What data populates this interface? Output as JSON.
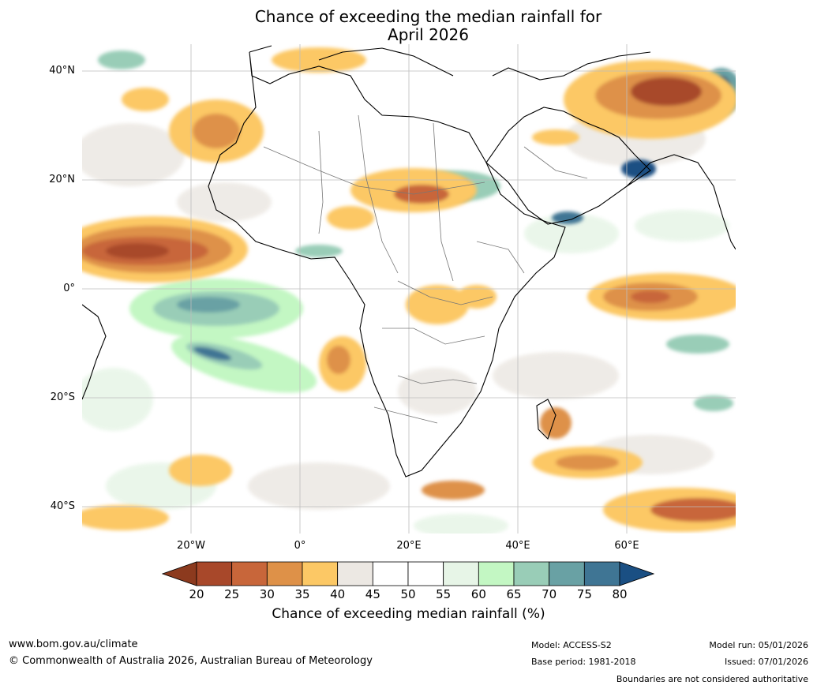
{
  "title_line1": "Chance of exceeding the median rainfall for",
  "title_line2": "April 2026",
  "lat_labels": [
    "40°N",
    "20°N",
    "0°",
    "20°S",
    "40°S"
  ],
  "lon_labels": [
    "20°W",
    "0°",
    "20°E",
    "40°E",
    "60°E"
  ],
  "colorbar": {
    "ticks": [
      "20",
      "25",
      "30",
      "35",
      "40",
      "45",
      "50",
      "55",
      "60",
      "65",
      "70",
      "75",
      "80"
    ],
    "colors": [
      "#8c3a1e",
      "#a8482a",
      "#c8663a",
      "#de9148",
      "#fcc865",
      "#ece8e3",
      "#ffffff",
      "#ffffff",
      "#e7f5e7",
      "#c3f7c3",
      "#99cdb7",
      "#69a1a4",
      "#3f7594",
      "#1a4f83"
    ],
    "label": "Chance of exceeding median rainfall (%)"
  },
  "footer": {
    "website": "www.bom.gov.au/climate",
    "copyright": "© Commonwealth of Australia 2026, Australian Bureau of Meteorology",
    "model": "Model: ACCESS-S2",
    "base_period": "Base period: 1981-2018",
    "model_run": "Model run: 05/01/2026",
    "issued": "Issued: 07/01/2026",
    "disclaimer": "Boundaries are not considered authoritative"
  }
}
